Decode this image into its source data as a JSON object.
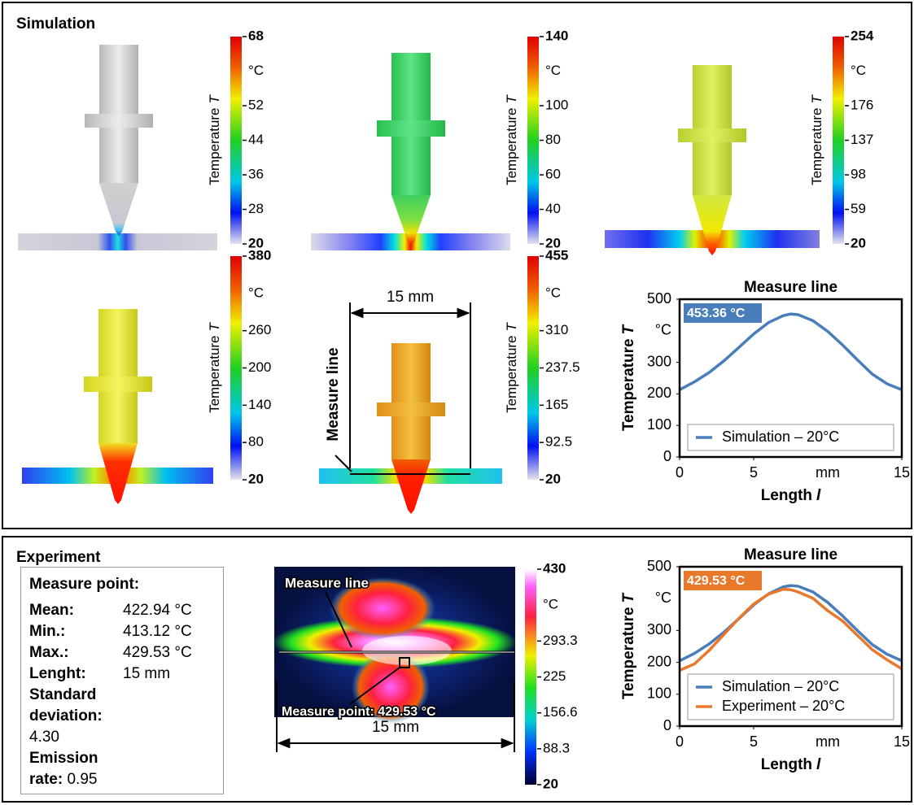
{
  "simulation": {
    "title": "Simulation",
    "panels": [
      {
        "colorbar": {
          "label": "Temperature",
          "label_var": "T",
          "unit": "°C",
          "lim": [
            20,
            68
          ],
          "ticks": [
            68,
            52,
            44,
            36,
            28,
            20
          ]
        }
      },
      {
        "colorbar": {
          "label": "Temperature",
          "label_var": "T",
          "unit": "°C",
          "lim": [
            20,
            140
          ],
          "ticks": [
            140,
            100,
            80,
            60,
            40,
            20
          ]
        }
      },
      {
        "colorbar": {
          "label": "Temperature",
          "label_var": "T",
          "unit": "°C",
          "lim": [
            20,
            254
          ],
          "ticks": [
            254,
            176,
            137,
            98,
            59,
            20
          ]
        }
      },
      {
        "colorbar": {
          "label": "Temperature",
          "label_var": "T",
          "unit": "°C",
          "lim": [
            20,
            380
          ],
          "ticks": [
            380,
            260,
            200,
            140,
            80,
            20
          ]
        }
      },
      {
        "colorbar": {
          "label": "Temperature",
          "label_var": "T",
          "unit": "°C",
          "lim": [
            20,
            455
          ],
          "ticks": [
            455,
            310,
            237.5,
            165,
            92.5,
            20
          ]
        },
        "measure_line": "Measure line",
        "length": "15 mm"
      }
    ]
  },
  "experiment": {
    "title": "Experiment",
    "info": {
      "heading": "Measure point:",
      "rows": [
        [
          "Mean:",
          "422.94 °C"
        ],
        [
          "Min.:",
          "413.12 °C"
        ],
        [
          "Max.:",
          "429.53 °C"
        ],
        [
          "Lenght:",
          "15 mm"
        ],
        [
          "Standard deviation:",
          "4.30"
        ],
        [
          "Emission rate:",
          "0.95"
        ]
      ]
    },
    "image": {
      "measure_line": "Measure line",
      "measure_point": "Measure point: 429.53 °C",
      "length": "15 mm"
    },
    "colorbar": {
      "unit": "°C",
      "lim": [
        20,
        430
      ],
      "ticks": [
        430,
        293.3,
        225,
        156.6,
        88.3,
        20
      ]
    }
  },
  "chart_data": [
    {
      "type": "line",
      "title": "Measure line",
      "ylabel": "Temperature",
      "ylabel_var": "T",
      "xlabel": "Length",
      "xlabel_var": "l",
      "y_unit": "°C",
      "x_unit": "mm",
      "xlim": [
        0,
        15
      ],
      "ylim": [
        0,
        500
      ],
      "xticks": [
        0,
        5,
        15
      ],
      "yticks": [
        0,
        100,
        200,
        300,
        500
      ],
      "x": [
        0,
        1,
        2,
        3,
        4,
        5,
        6,
        7,
        7.5,
        8,
        9,
        10,
        11,
        12,
        13,
        14,
        15
      ],
      "series": [
        {
          "name": "Simulation – 20°C",
          "color": "#4a7ebb",
          "values": [
            213,
            238,
            268,
            305,
            347,
            390,
            426,
            448,
            453.36,
            451,
            432,
            398,
            355,
            308,
            263,
            232,
            213
          ]
        }
      ],
      "annotations": [
        {
          "text": "453.36 °C"
        }
      ],
      "legend": "lower center"
    },
    {
      "type": "line",
      "title": "Measure line",
      "ylabel": "Temperature",
      "ylabel_var": "T",
      "xlabel": "Length",
      "xlabel_var": "l",
      "y_unit": "°C",
      "x_unit": "mm",
      "xlim": [
        0,
        15
      ],
      "ylim": [
        0,
        500
      ],
      "xticks": [
        0,
        5,
        15
      ],
      "yticks": [
        0,
        100,
        200,
        300,
        500
      ],
      "x": [
        0,
        1,
        2,
        3,
        4,
        5,
        6,
        7,
        7.5,
        8,
        9,
        10,
        11,
        12,
        13,
        14,
        15
      ],
      "series": [
        {
          "name": "Simulation – 20°C",
          "color": "#4a7ebb",
          "values": [
            205,
            228,
            258,
            295,
            337,
            380,
            415,
            437,
            441,
            439,
            421,
            388,
            346,
            300,
            256,
            226,
            205
          ]
        },
        {
          "name": "Experiment – 20°C",
          "color": "#e8782a",
          "values": [
            175,
            195,
            238,
            288,
            338,
            383,
            414,
            429.53,
            428,
            421,
            401,
            362,
            330,
            285,
            240,
            208,
            180
          ]
        }
      ],
      "annotations": [
        {
          "text": "429.53 °C"
        }
      ],
      "legend": "lower center"
    }
  ]
}
